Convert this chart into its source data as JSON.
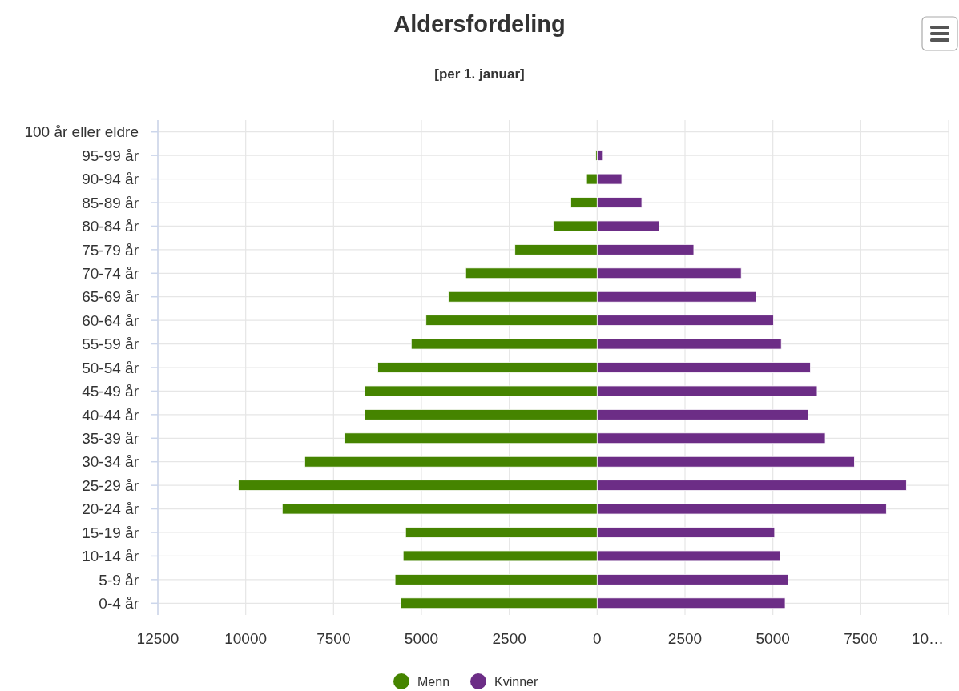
{
  "chart_data": {
    "type": "bar",
    "orientation": "horizontal",
    "stacked": true,
    "title": "Aldersfordeling",
    "subtitle": "[per 1. januar]",
    "categories": [
      "100 år eller eldre",
      "95-99 år",
      "90-94 år",
      "85-89 år",
      "80-84 år",
      "75-79 år",
      "70-74 år",
      "65-69 år",
      "60-64 år",
      "55-59 år",
      "50-54 år",
      "45-49 år",
      "40-44 år",
      "35-39 år",
      "30-34 år",
      "25-29 år",
      "20-24 år",
      "15-19 år",
      "10-14 år",
      "5-9 år",
      "0-4 år"
    ],
    "series": [
      {
        "name": "Menn",
        "color": "#458400",
        "values": [
          null,
          -40,
          -300,
          -750,
          -1250,
          -2340,
          -3740,
          -4230,
          -4870,
          -5290,
          -6240,
          -6610,
          -6610,
          -7190,
          -8320,
          -10210,
          -8960,
          -5450,
          -5520,
          -5750,
          -5590
        ]
      },
      {
        "name": "Kvinner",
        "color": "#6c2d86",
        "values": [
          null,
          170,
          700,
          1270,
          1760,
          2750,
          4100,
          4520,
          5020,
          5240,
          6070,
          6260,
          6000,
          6490,
          7320,
          8800,
          8230,
          5050,
          5200,
          5430,
          5350
        ]
      }
    ],
    "xlim": [
      -12500,
      10000
    ],
    "xticks": [
      {
        "value": -12500,
        "label": "12500"
      },
      {
        "value": -10000,
        "label": "10000"
      },
      {
        "value": -7500,
        "label": "7500"
      },
      {
        "value": -5000,
        "label": "5000"
      },
      {
        "value": -2500,
        "label": "2500"
      },
      0,
      2500,
      5000,
      7500,
      {
        "value": 10000,
        "label": "10…"
      }
    ],
    "grid": true,
    "legend": "bottom"
  }
}
